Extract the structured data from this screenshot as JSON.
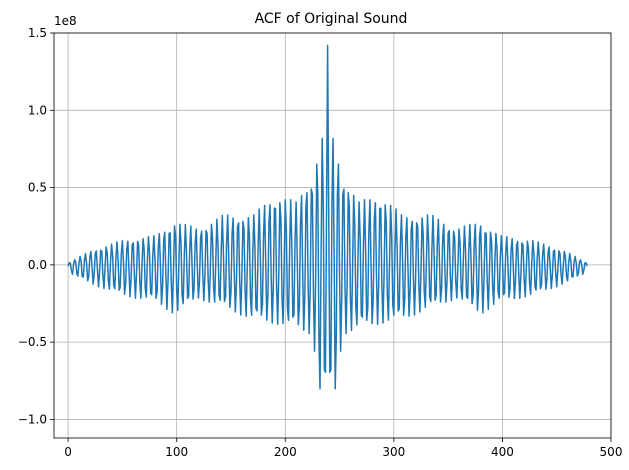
{
  "chart_data": {
    "type": "line",
    "title": "ACF of Original Sound",
    "xlabel": "",
    "ylabel": "",
    "xlim": [
      -13,
      500
    ],
    "ylim": [
      -1.12,
      1.5
    ],
    "y_scale_note": "1e8",
    "x_ticks": [
      0,
      100,
      200,
      300,
      400,
      500
    ],
    "x_tick_labels": [
      "0",
      "100",
      "200",
      "300",
      "400",
      "500"
    ],
    "y_ticks": [
      -1.0,
      -0.5,
      0.0,
      0.5,
      1.0,
      1.5
    ],
    "y_tick_labels": [
      "−1.0",
      "−0.5",
      "0.0",
      "0.5",
      "1.0",
      "1.5"
    ],
    "grid": true,
    "series": [
      {
        "name": "ACF",
        "color": "#1f77b4",
        "n_points": 479,
        "center_lag": 239,
        "period": 4.85,
        "peaks": [
          {
            "x": 0,
            "max": 0.01,
            "min": -0.05
          },
          {
            "x": 20,
            "max": 0.09,
            "min": -0.12
          },
          {
            "x": 50,
            "max": 0.16,
            "min": -0.2
          },
          {
            "x": 80,
            "max": 0.19,
            "min": -0.24
          },
          {
            "x": 98,
            "max": 0.28,
            "min": -0.32
          },
          {
            "x": 120,
            "max": 0.24,
            "min": -0.22
          },
          {
            "x": 145,
            "max": 0.33,
            "min": -0.28
          },
          {
            "x": 170,
            "max": 0.32,
            "min": -0.36
          },
          {
            "x": 190,
            "max": 0.46,
            "min": -0.38
          },
          {
            "x": 210,
            "max": 0.41,
            "min": -0.42
          },
          {
            "x": 225,
            "max": 0.6,
            "min": -0.45
          },
          {
            "x": 235,
            "max": 0.86,
            "min": -1.03
          },
          {
            "x": 239,
            "max": 1.42,
            "min": -0.6
          },
          {
            "x": 243,
            "max": 0.86,
            "min": -1.03
          },
          {
            "x": 253,
            "max": 0.6,
            "min": -0.45
          },
          {
            "x": 268,
            "max": 0.41,
            "min": -0.42
          },
          {
            "x": 288,
            "max": 0.46,
            "min": -0.38
          },
          {
            "x": 308,
            "max": 0.32,
            "min": -0.36
          },
          {
            "x": 333,
            "max": 0.33,
            "min": -0.28
          },
          {
            "x": 358,
            "max": 0.24,
            "min": -0.22
          },
          {
            "x": 380,
            "max": 0.28,
            "min": -0.32
          },
          {
            "x": 398,
            "max": 0.19,
            "min": -0.24
          },
          {
            "x": 428,
            "max": 0.16,
            "min": -0.2
          },
          {
            "x": 458,
            "max": 0.09,
            "min": -0.12
          },
          {
            "x": 478,
            "max": 0.01,
            "min": -0.05
          }
        ]
      }
    ]
  }
}
